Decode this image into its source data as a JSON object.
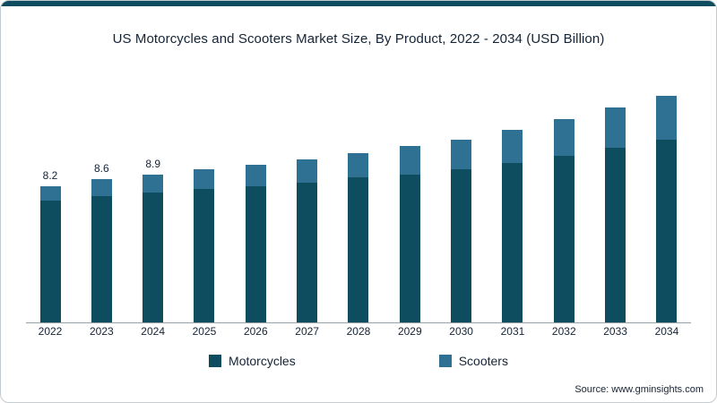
{
  "header": {
    "title": "US Motorcycles and Scooters Market Size, By Product, 2022 - 2034 (USD Billion)"
  },
  "legend": {
    "items": [
      {
        "label": "Motorcycles",
        "color": "#0d4d5f"
      },
      {
        "label": "Scooters",
        "color": "#2e7193"
      }
    ]
  },
  "footer": {
    "source": "Source: www.gminsights.com"
  },
  "colors": {
    "accent": "#0d4d5f",
    "motorcycles": "#0d4d5f",
    "scooters": "#2e7193",
    "text": "#152435"
  },
  "chart_data": {
    "type": "bar",
    "stacked": true,
    "title": "US Motorcycles and Scooters Market Size, By Product, 2022 - 2034 (USD Billion)",
    "xlabel": "",
    "ylabel": "USD Billion",
    "ylim": [
      0,
      14
    ],
    "grid": false,
    "legend_position": "bottom",
    "categories": [
      "2022",
      "2023",
      "2024",
      "2025",
      "2026",
      "2027",
      "2028",
      "2029",
      "2030",
      "2031",
      "2032",
      "2033",
      "2034"
    ],
    "series": [
      {
        "name": "Motorcycles",
        "color": "#0d4d5f",
        "values": [
          7.3,
          7.6,
          7.8,
          8.0,
          8.2,
          8.4,
          8.7,
          8.9,
          9.2,
          9.6,
          10.0,
          10.5,
          11.0
        ]
      },
      {
        "name": "Scooters",
        "color": "#2e7193",
        "values": [
          0.9,
          1.0,
          1.1,
          1.2,
          1.3,
          1.4,
          1.5,
          1.7,
          1.8,
          2.0,
          2.2,
          2.4,
          2.6
        ]
      }
    ],
    "totals": [
      8.2,
      8.6,
      8.9,
      9.2,
      9.5,
      9.8,
      10.2,
      10.6,
      11.0,
      11.6,
      12.2,
      12.9,
      13.6
    ],
    "data_labels": [
      "8.2",
      "8.6",
      "8.9",
      "",
      "",
      "",
      "",
      "",
      "",
      "",
      "",
      "",
      ""
    ]
  }
}
